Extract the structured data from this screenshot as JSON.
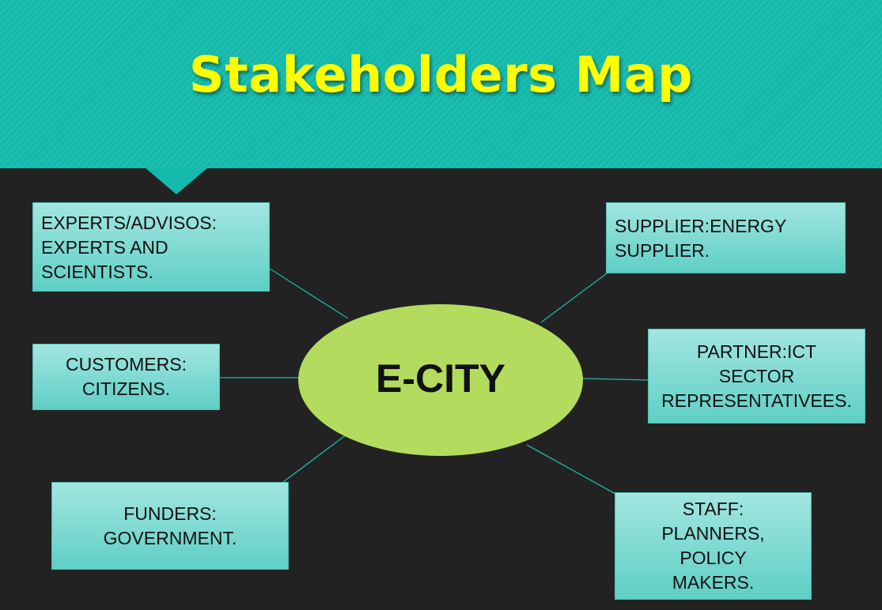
{
  "title": "Stakeholders Map",
  "hub": {
    "label": "E-CITY",
    "color": "#b3dc5e"
  },
  "colors": {
    "banner": "#13b9ab",
    "title": "#ffff00",
    "background": "#222222",
    "connector": "#1fb5a8"
  },
  "nodes": {
    "experts": "EXPERTS/ADVISOS:\nEXPERTS AND\nSCIENTISTS.",
    "customers": "CUSTOMERS:\nCITIZENS.",
    "funders": "FUNDERS:\nGOVERNMENT.",
    "supplier": "SUPPLIER:ENERGY\nSUPPLIER.",
    "partner": "PARTNER:ICT\nSECTOR\nREPRESENTATIVEES.",
    "staff": "STAFF:\nPLANNERS,\nPOLICY\nMAKERS."
  }
}
